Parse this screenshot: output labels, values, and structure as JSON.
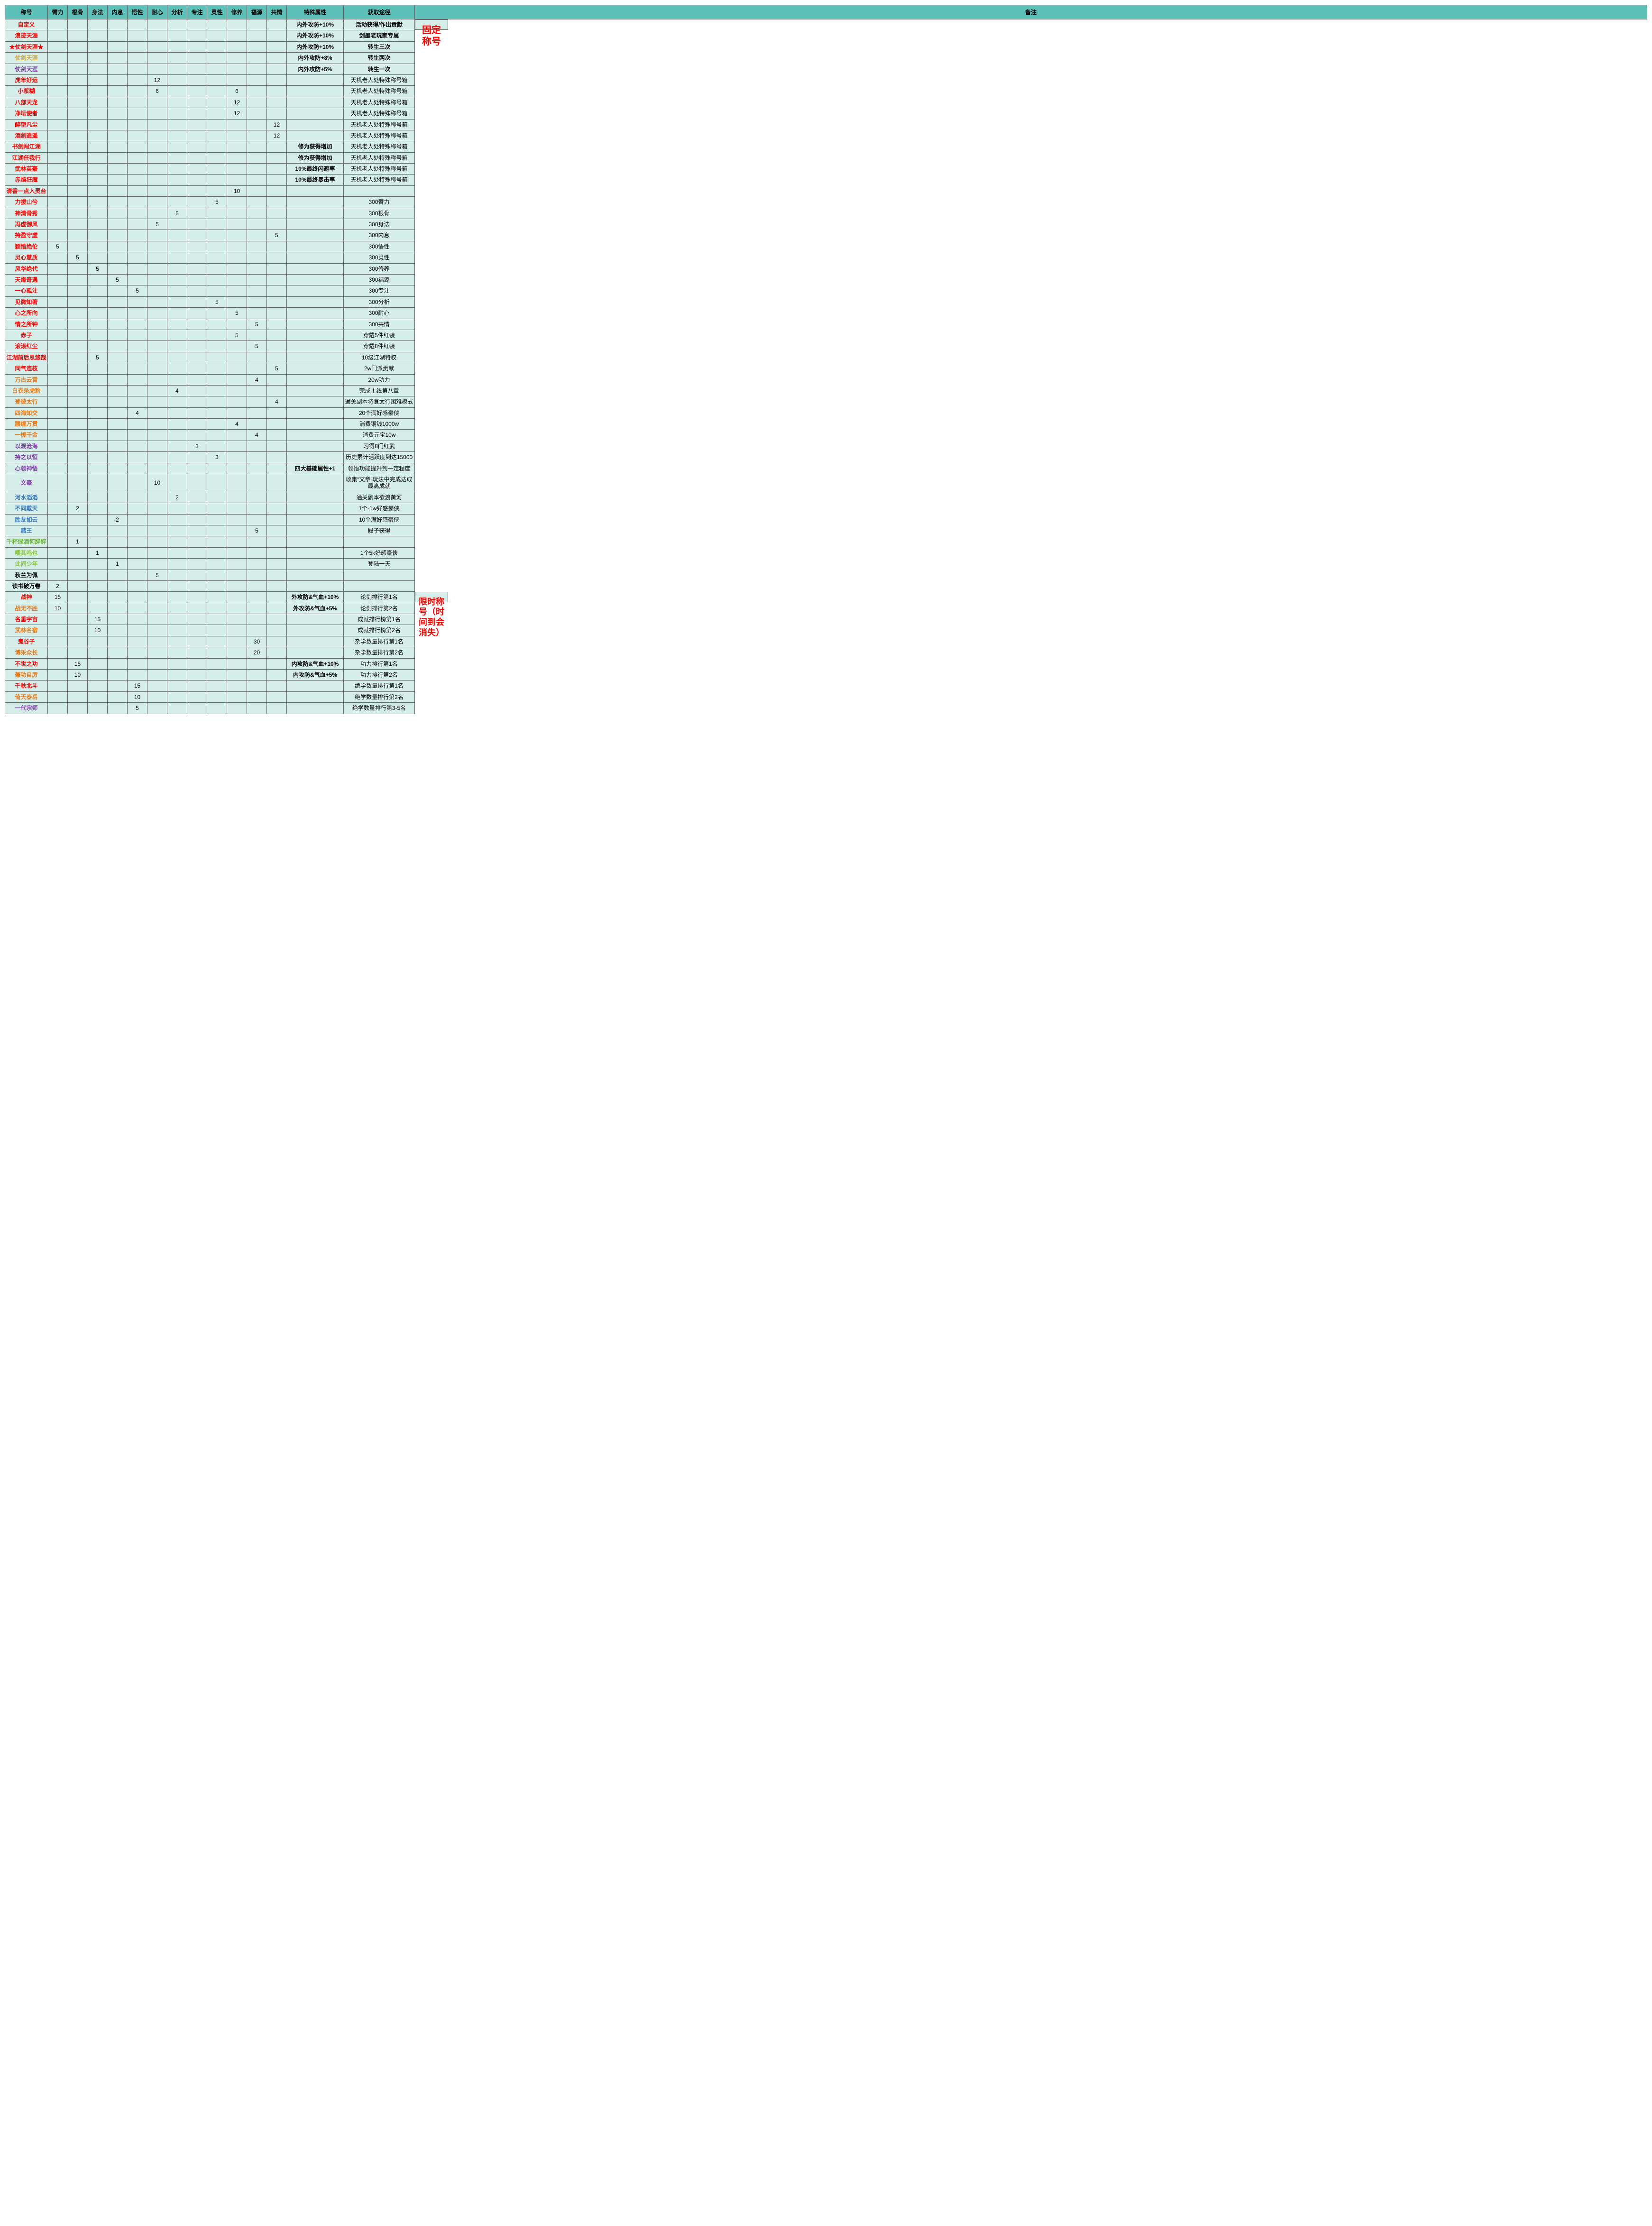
{
  "headers": [
    "称号",
    "臂力",
    "根骨",
    "身法",
    "内息",
    "悟性",
    "耐心",
    "分析",
    "专注",
    "灵性",
    "修养",
    "福源",
    "共情",
    "特殊属性",
    "获取途径",
    "备注"
  ],
  "remarks": {
    "fixed": "固定称号",
    "limited": "限时称号（时间到会消失）"
  },
  "colors": {
    "header_bg": "#5dc1b9",
    "cell_bg": "#d5eeea",
    "border": "#666666",
    "c_red": "#ff0000",
    "c_gold": "#d4a843",
    "c_purple": "#7b3fa0",
    "c_orange": "#e67817",
    "c_blue": "#3b7cc4",
    "c_green": "#6fb536",
    "c_lightgreen": "#8dc63f",
    "c_black": "#000000"
  },
  "rows": [
    {
      "title": "自定义",
      "tc": "c-red",
      "v": [
        "",
        "",
        "",
        "",
        "",
        "",
        "",
        "",
        "",
        "",
        "",
        ""
      ],
      "sp": "内外攻防+10%",
      "src": "活动获得/作出贡献",
      "sb": true
    },
    {
      "title": "浪迹天涯",
      "tc": "c-red",
      "v": [
        "",
        "",
        "",
        "",
        "",
        "",
        "",
        "",
        "",
        "",
        "",
        ""
      ],
      "sp": "内外攻防+10%",
      "src": "剑墨老玩家专属",
      "sb": true
    },
    {
      "title": "★仗剑天涯★",
      "tc": "c-red",
      "v": [
        "",
        "",
        "",
        "",
        "",
        "",
        "",
        "",
        "",
        "",
        "",
        ""
      ],
      "sp": "内外攻防+10%",
      "src": "转生三次",
      "sb": true
    },
    {
      "title": "仗剑天涯",
      "tc": "c-gold",
      "v": [
        "",
        "",
        "",
        "",
        "",
        "",
        "",
        "",
        "",
        "",
        "",
        ""
      ],
      "sp": "内外攻防+8%",
      "src": "转生两次",
      "sb": true
    },
    {
      "title": "仗剑天涯",
      "tc": "c-purple",
      "v": [
        "",
        "",
        "",
        "",
        "",
        "",
        "",
        "",
        "",
        "",
        "",
        ""
      ],
      "sp": "内外攻防+5%",
      "src": "转生一次",
      "sb": true
    },
    {
      "title": "虎年好运",
      "tc": "c-red",
      "v": [
        "",
        "",
        "",
        "",
        "",
        "12",
        "",
        "",
        "",
        "",
        "",
        ""
      ],
      "sp": "",
      "src": "天机老人处特殊称号箱"
    },
    {
      "title": "小浆糊",
      "tc": "c-red",
      "v": [
        "",
        "",
        "",
        "",
        "",
        "6",
        "",
        "",
        "",
        "6",
        "",
        ""
      ],
      "sp": "",
      "src": "天机老人处特殊称号箱"
    },
    {
      "title": "八部天龙",
      "tc": "c-red",
      "v": [
        "",
        "",
        "",
        "",
        "",
        "",
        "",
        "",
        "",
        "12",
        "",
        ""
      ],
      "sp": "",
      "src": "天机老人处特殊称号箱"
    },
    {
      "title": "净坛使者",
      "tc": "c-red",
      "v": [
        "",
        "",
        "",
        "",
        "",
        "",
        "",
        "",
        "",
        "12",
        "",
        ""
      ],
      "sp": "",
      "src": "天机老人处特殊称号箱"
    },
    {
      "title": "醉望凡尘",
      "tc": "c-red",
      "v": [
        "",
        "",
        "",
        "",
        "",
        "",
        "",
        "",
        "",
        "",
        "",
        "12"
      ],
      "sp": "",
      "src": "天机老人处特殊称号箱"
    },
    {
      "title": "酒剑逍遥",
      "tc": "c-red",
      "v": [
        "",
        "",
        "",
        "",
        "",
        "",
        "",
        "",
        "",
        "",
        "",
        "12"
      ],
      "sp": "",
      "src": "天机老人处特殊称号箱"
    },
    {
      "title": "书剑闯江湖",
      "tc": "c-red",
      "v": [
        "",
        "",
        "",
        "",
        "",
        "",
        "",
        "",
        "",
        "",
        "",
        ""
      ],
      "sp": "修为获得增加",
      "src": "天机老人处特殊称号箱"
    },
    {
      "title": "江湖任我行",
      "tc": "c-red",
      "v": [
        "",
        "",
        "",
        "",
        "",
        "",
        "",
        "",
        "",
        "",
        "",
        ""
      ],
      "sp": "修为获得增加",
      "src": "天机老人处特殊称号箱"
    },
    {
      "title": "武林英豪",
      "tc": "c-red",
      "v": [
        "",
        "",
        "",
        "",
        "",
        "",
        "",
        "",
        "",
        "",
        "",
        ""
      ],
      "sp": "10%最终闪避率",
      "src": "天机老人处特殊称号箱"
    },
    {
      "title": "赤焰狂魔",
      "tc": "c-red",
      "v": [
        "",
        "",
        "",
        "",
        "",
        "",
        "",
        "",
        "",
        "",
        "",
        ""
      ],
      "sp": "10%最终暴击率",
      "src": "天机老人处特殊称号箱"
    },
    {
      "title": "清香一点入灵台",
      "tc": "c-red",
      "v": [
        "",
        "",
        "",
        "",
        "",
        "",
        "",
        "",
        "",
        "10",
        "",
        ""
      ],
      "sp": "",
      "src": ""
    },
    {
      "title": "力拔山兮",
      "tc": "c-red",
      "v": [
        "",
        "",
        "",
        "",
        "",
        "",
        "",
        "",
        "5",
        "",
        "",
        ""
      ],
      "sp": "",
      "src": "300臂力"
    },
    {
      "title": "神清骨秀",
      "tc": "c-red",
      "v": [
        "",
        "",
        "",
        "",
        "",
        "",
        "5",
        "",
        "",
        "",
        "",
        ""
      ],
      "sp": "",
      "src": "300根骨"
    },
    {
      "title": "冯虚御风",
      "tc": "c-red",
      "v": [
        "",
        "",
        "",
        "",
        "",
        "5",
        "",
        "",
        "",
        "",
        "",
        ""
      ],
      "sp": "",
      "src": "300身法"
    },
    {
      "title": "持盈守虚",
      "tc": "c-red",
      "v": [
        "",
        "",
        "",
        "",
        "",
        "",
        "",
        "",
        "",
        "",
        "",
        "5"
      ],
      "sp": "",
      "src": "300内息"
    },
    {
      "title": "颖悟绝伦",
      "tc": "c-red",
      "v": [
        "5",
        "",
        "",
        "",
        "",
        "",
        "",
        "",
        "",
        "",
        "",
        ""
      ],
      "sp": "",
      "src": "300悟性"
    },
    {
      "title": "灵心慧质",
      "tc": "c-red",
      "v": [
        "",
        "5",
        "",
        "",
        "",
        "",
        "",
        "",
        "",
        "",
        "",
        ""
      ],
      "sp": "",
      "src": "300灵性"
    },
    {
      "title": "风华绝代",
      "tc": "c-red",
      "v": [
        "",
        "",
        "5",
        "",
        "",
        "",
        "",
        "",
        "",
        "",
        "",
        ""
      ],
      "sp": "",
      "src": "300修养"
    },
    {
      "title": "天缘奇遇",
      "tc": "c-red",
      "v": [
        "",
        "",
        "",
        "5",
        "",
        "",
        "",
        "",
        "",
        "",
        "",
        ""
      ],
      "sp": "",
      "src": "300福源"
    },
    {
      "title": "一心孤注",
      "tc": "c-red",
      "v": [
        "",
        "",
        "",
        "",
        "5",
        "",
        "",
        "",
        "",
        "",
        "",
        ""
      ],
      "sp": "",
      "src": "300专注"
    },
    {
      "title": "见微知著",
      "tc": "c-red",
      "v": [
        "",
        "",
        "",
        "",
        "",
        "",
        "",
        "",
        "5",
        "",
        "",
        ""
      ],
      "sp": "",
      "src": "300分析"
    },
    {
      "title": "心之所向",
      "tc": "c-red",
      "v": [
        "",
        "",
        "",
        "",
        "",
        "",
        "",
        "",
        "",
        "5",
        "",
        ""
      ],
      "sp": "",
      "src": "300耐心"
    },
    {
      "title": "情之所钟",
      "tc": "c-red",
      "v": [
        "",
        "",
        "",
        "",
        "",
        "",
        "",
        "",
        "",
        "",
        "5",
        ""
      ],
      "sp": "",
      "src": "300共情"
    },
    {
      "title": "赤子",
      "tc": "c-red",
      "v": [
        "",
        "",
        "",
        "",
        "",
        "",
        "",
        "",
        "",
        "5",
        "",
        ""
      ],
      "sp": "",
      "src": "穿戴5件红装"
    },
    {
      "title": "滚滚红尘",
      "tc": "c-red",
      "v": [
        "",
        "",
        "",
        "",
        "",
        "",
        "",
        "",
        "",
        "",
        "5",
        ""
      ],
      "sp": "",
      "src": "穿戴8件红装"
    },
    {
      "title": "江湖前后思悠哉",
      "tc": "c-red",
      "v": [
        "",
        "",
        "5",
        "",
        "",
        "",
        "",
        "",
        "",
        "",
        "",
        ""
      ],
      "sp": "",
      "src": "10级江湖特权"
    },
    {
      "title": "同气连枝",
      "tc": "c-red",
      "v": [
        "",
        "",
        "",
        "",
        "",
        "",
        "",
        "",
        "",
        "",
        "",
        "5"
      ],
      "sp": "",
      "src": "2w门派贡献"
    },
    {
      "title": "万古云霄",
      "tc": "c-orange",
      "v": [
        "",
        "",
        "",
        "",
        "",
        "",
        "",
        "",
        "",
        "",
        "4",
        ""
      ],
      "sp": "",
      "src": "20w功力"
    },
    {
      "title": "白衣杀虎豹",
      "tc": "c-orange",
      "v": [
        "",
        "",
        "",
        "",
        "",
        "",
        "4",
        "",
        "",
        "",
        "",
        ""
      ],
      "sp": "",
      "src": "完成主线第八章"
    },
    {
      "title": "登彼太行",
      "tc": "c-orange",
      "v": [
        "",
        "",
        "",
        "",
        "",
        "",
        "",
        "",
        "",
        "",
        "",
        "4"
      ],
      "sp": "",
      "src": "通关副本将登太行困难模式"
    },
    {
      "title": "四海知交",
      "tc": "c-orange",
      "v": [
        "",
        "",
        "",
        "",
        "4",
        "",
        "",
        "",
        "",
        "",
        "",
        ""
      ],
      "sp": "",
      "src": "20个满好感豪侠"
    },
    {
      "title": "腰缠万贯",
      "tc": "c-orange",
      "v": [
        "",
        "",
        "",
        "",
        "",
        "",
        "",
        "",
        "",
        "4",
        "",
        ""
      ],
      "sp": "",
      "src": "消费铜钱1000w"
    },
    {
      "title": "一掷千金",
      "tc": "c-orange",
      "v": [
        "",
        "",
        "",
        "",
        "",
        "",
        "",
        "",
        "",
        "",
        "4",
        ""
      ],
      "sp": "",
      "src": "消费元宝10w"
    },
    {
      "title": "以观沧海",
      "tc": "c-purple",
      "v": [
        "",
        "",
        "",
        "",
        "",
        "",
        "",
        "3",
        "",
        "",
        "",
        ""
      ],
      "sp": "",
      "src": "习得8门红武"
    },
    {
      "title": "持之以恒",
      "tc": "c-purple",
      "v": [
        "",
        "",
        "",
        "",
        "",
        "",
        "",
        "",
        "3",
        "",
        "",
        ""
      ],
      "sp": "",
      "src": "历史累计活跃度到达15000"
    },
    {
      "title": "心领神悟",
      "tc": "c-purple",
      "v": [
        "",
        "",
        "",
        "",
        "",
        "",
        "",
        "",
        "",
        "",
        "",
        ""
      ],
      "sp": "四大基础属性+1",
      "src": "领悟功能提升到一定程度"
    },
    {
      "title": "文豪",
      "tc": "c-purple",
      "v": [
        "",
        "",
        "",
        "",
        "",
        "10",
        "",
        "",
        "",
        "",
        "",
        ""
      ],
      "sp": "",
      "src": "收集“文章”玩法中完成达成最高成就"
    },
    {
      "title": "河水滔滔",
      "tc": "c-blue",
      "v": [
        "",
        "",
        "",
        "",
        "",
        "",
        "2",
        "",
        "",
        "",
        "",
        ""
      ],
      "sp": "",
      "src": "通关副本欲渡黄河"
    },
    {
      "title": "不同戴天",
      "tc": "c-blue",
      "v": [
        "",
        "2",
        "",
        "",
        "",
        "",
        "",
        "",
        "",
        "",
        "",
        ""
      ],
      "sp": "",
      "src": "1个-1w好感豪侠"
    },
    {
      "title": "胜友如云",
      "tc": "c-blue",
      "v": [
        "",
        "",
        "",
        "2",
        "",
        "",
        "",
        "",
        "",
        "",
        "",
        ""
      ],
      "sp": "",
      "src": "10个满好感豪侠"
    },
    {
      "title": "赌王",
      "tc": "c-blue",
      "v": [
        "",
        "",
        "",
        "",
        "",
        "",
        "",
        "",
        "",
        "",
        "5",
        ""
      ],
      "sp": "",
      "src": "骰子获得"
    },
    {
      "title": "千杯绿酒何辞醉",
      "tc": "c-green",
      "v": [
        "",
        "1",
        "",
        "",
        "",
        "",
        "",
        "",
        "",
        "",
        "",
        ""
      ],
      "sp": "",
      "src": ""
    },
    {
      "title": "嘤其鸣也",
      "tc": "c-lightgreen",
      "v": [
        "",
        "",
        "1",
        "",
        "",
        "",
        "",
        "",
        "",
        "",
        "",
        ""
      ],
      "sp": "",
      "src": "1个5k好感豪侠"
    },
    {
      "title": "此间少年",
      "tc": "c-lightgreen",
      "v": [
        "",
        "",
        "",
        "1",
        "",
        "",
        "",
        "",
        "",
        "",
        "",
        ""
      ],
      "sp": "",
      "src": "登陆一天"
    },
    {
      "title": "秋兰为佩",
      "tc": "c-black",
      "v": [
        "",
        "",
        "",
        "",
        "",
        "5",
        "",
        "",
        "",
        "",
        "",
        ""
      ],
      "sp": "",
      "src": ""
    },
    {
      "title": "读书破万卷",
      "tc": "c-black",
      "v": [
        "2",
        "",
        "",
        "",
        "",
        "",
        "",
        "",
        "",
        "",
        "",
        ""
      ],
      "sp": "",
      "src": ""
    },
    {
      "title": "战神",
      "tc": "c-red",
      "v": [
        "15",
        "",
        "",
        "",
        "",
        "",
        "",
        "",
        "",
        "",
        "",
        ""
      ],
      "sp": "外攻防&气血+10%",
      "src": "论剑排行第1名"
    },
    {
      "title": "战无不胜",
      "tc": "c-orange",
      "v": [
        "10",
        "",
        "",
        "",
        "",
        "",
        "",
        "",
        "",
        "",
        "",
        ""
      ],
      "sp": "外攻防&气血+5%",
      "src": "论剑排行第2名"
    },
    {
      "title": "名垂宇宙",
      "tc": "c-red",
      "v": [
        "",
        "",
        "15",
        "",
        "",
        "",
        "",
        "",
        "",
        "",
        "",
        ""
      ],
      "sp": "",
      "src": "成就排行榜第1名"
    },
    {
      "title": "武林名宿",
      "tc": "c-orange",
      "v": [
        "",
        "",
        "10",
        "",
        "",
        "",
        "",
        "",
        "",
        "",
        "",
        ""
      ],
      "sp": "",
      "src": "成就排行榜第2名"
    },
    {
      "title": "鬼谷子",
      "tc": "c-red",
      "v": [
        "",
        "",
        "",
        "",
        "",
        "",
        "",
        "",
        "",
        "",
        "30",
        ""
      ],
      "sp": "",
      "src": "杂学数量排行第1名"
    },
    {
      "title": "博采众长",
      "tc": "c-orange",
      "v": [
        "",
        "",
        "",
        "",
        "",
        "",
        "",
        "",
        "",
        "",
        "20",
        ""
      ],
      "sp": "",
      "src": "杂学数量排行第2名"
    },
    {
      "title": "不世之功",
      "tc": "c-red",
      "v": [
        "",
        "15",
        "",
        "",
        "",
        "",
        "",
        "",
        "",
        "",
        "",
        ""
      ],
      "sp": "内攻防&气血+10%",
      "src": "功力排行第1名"
    },
    {
      "title": "兼功自厉",
      "tc": "c-orange",
      "v": [
        "",
        "10",
        "",
        "",
        "",
        "",
        "",
        "",
        "",
        "",
        "",
        ""
      ],
      "sp": "内攻防&气血+5%",
      "src": "功力排行第2名"
    },
    {
      "title": "千秋北斗",
      "tc": "c-red",
      "v": [
        "",
        "",
        "",
        "",
        "15",
        "",
        "",
        "",
        "",
        "",
        "",
        ""
      ],
      "sp": "",
      "src": "绝学数量排行第1名"
    },
    {
      "title": "倚天泰岳",
      "tc": "c-orange",
      "v": [
        "",
        "",
        "",
        "",
        "10",
        "",
        "",
        "",
        "",
        "",
        "",
        ""
      ],
      "sp": "",
      "src": "绝学数量排行第2名"
    },
    {
      "title": "一代宗师",
      "tc": "c-purple",
      "v": [
        "",
        "",
        "",
        "",
        "5",
        "",
        "",
        "",
        "",
        "",
        "",
        ""
      ],
      "sp": "",
      "src": "绝学数量排行第3-5名"
    }
  ],
  "fixed_row_count": 51,
  "limited_row_count": 11
}
